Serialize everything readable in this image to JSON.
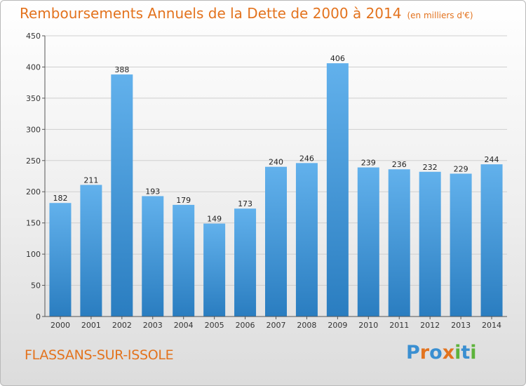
{
  "title": "Remboursements Annuels de la Dette de 2000 à 2014",
  "subtitle": "(en milliers d'€)",
  "commune": "FLASSANS-SUR-ISSOLE",
  "logo": {
    "text": "Proxiti",
    "letters": [
      "P",
      "r",
      "o",
      "x",
      "i",
      "t",
      "i"
    ]
  },
  "colors": {
    "title": "#e3731e",
    "bar_top": "#62b1ec",
    "bar_bottom": "#2a7dc0",
    "logo_letters": [
      "#3a8fd1",
      "#e3731e",
      "#3a8fd1",
      "#e3731e",
      "#5db33b",
      "#3a8fd1",
      "#5db33b"
    ]
  },
  "chart_data": {
    "type": "bar",
    "title": "Remboursements Annuels de la Dette de 2000 à 2014",
    "subtitle": "(en milliers d'€)",
    "categories": [
      "2000",
      "2001",
      "2002",
      "2003",
      "2004",
      "2005",
      "2006",
      "2007",
      "2008",
      "2009",
      "2010",
      "2011",
      "2012",
      "2013",
      "2014"
    ],
    "values": [
      182,
      211,
      388,
      193,
      179,
      149,
      173,
      240,
      246,
      406,
      239,
      236,
      232,
      229,
      244
    ],
    "ylim": [
      0,
      450
    ],
    "yticks": [
      0,
      50,
      100,
      150,
      200,
      250,
      300,
      350,
      400,
      450
    ],
    "grid": true
  }
}
